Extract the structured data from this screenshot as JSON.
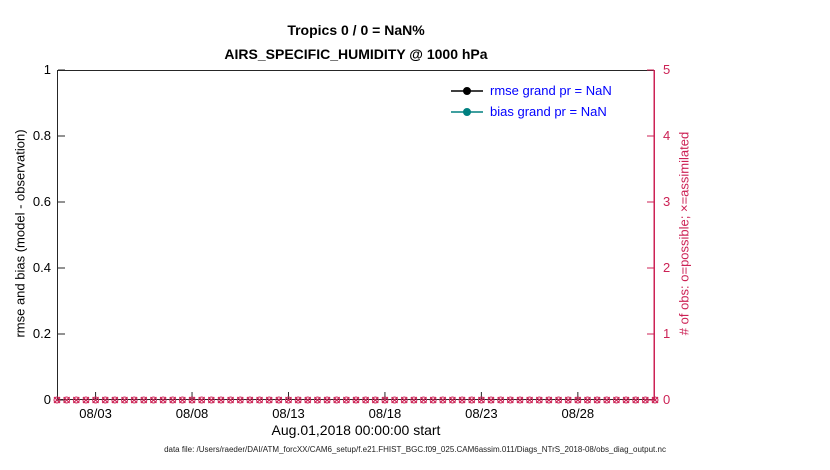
{
  "figure": {
    "title_line1": "Tropics 0 / 0 = NaN%",
    "title_line2": "AIRS_SPECIFIC_HUMIDITY @ 1000 hPa",
    "footer": "data file: /Users/raeder/DAI/ATM_forcXX/CAM6_setup/f.e21.FHIST_BGC.f09_025.CAM6assim.011/Diags_NTrS_2018-08/obs_diag_output.nc"
  },
  "chart_data": {
    "type": "line",
    "title": "Tropics 0 / 0 = NaN% — AIRS_SPECIFIC_HUMIDITY @ 1000 hPa",
    "xlabel": "Aug.01,2018 00:00:00 start",
    "ylabel_left": "rmse and bias (model - observation)",
    "ylabel_right": "# of obs: o=possible; ×=assimilated",
    "ylim_left": [
      0,
      1
    ],
    "yticks_left": [
      "0",
      "0.2",
      "0.4",
      "0.6",
      "0.8",
      "1"
    ],
    "ylim_right": [
      0,
      5
    ],
    "yticks_right": [
      "0",
      "1",
      "2",
      "3",
      "4",
      "5"
    ],
    "xticks": [
      "08/03",
      "08/08",
      "08/13",
      "08/18",
      "08/23",
      "08/28"
    ],
    "xtick_days": [
      2,
      7,
      12,
      17,
      22,
      27
    ],
    "x_domain_days": [
      0,
      31
    ],
    "grid": false,
    "legend": {
      "position": "top-right-inside",
      "entries": [
        {
          "label": "rmse grand pr = NaN",
          "color": "#000000",
          "marker": "dot"
        },
        {
          "label": "bias grand pr = NaN",
          "color": "#008080",
          "marker": "dot"
        }
      ]
    },
    "series": [
      {
        "name": "rmse",
        "axis": "left",
        "color": "#000000",
        "values": "NaN (not plotted)"
      },
      {
        "name": "bias",
        "axis": "left",
        "color": "#008080",
        "values": "NaN (not plotted)"
      },
      {
        "name": "# of obs possible (o)",
        "axis": "right",
        "color": "#cc2255",
        "marker": "o",
        "points": {
          "count": 63,
          "x_days_start": 0,
          "x_days_step": 0.5,
          "constant_value": 0
        }
      },
      {
        "name": "# of obs assimilated (x)",
        "axis": "right",
        "color": "#cc2255",
        "marker": "x",
        "points": {
          "count": 63,
          "x_days_start": 0,
          "x_days_step": 0.5,
          "constant_value": 0
        }
      }
    ],
    "colors": {
      "right_axis": "#cc2255",
      "legend_text": "#0000ff",
      "axis_spine": "#262626"
    }
  }
}
